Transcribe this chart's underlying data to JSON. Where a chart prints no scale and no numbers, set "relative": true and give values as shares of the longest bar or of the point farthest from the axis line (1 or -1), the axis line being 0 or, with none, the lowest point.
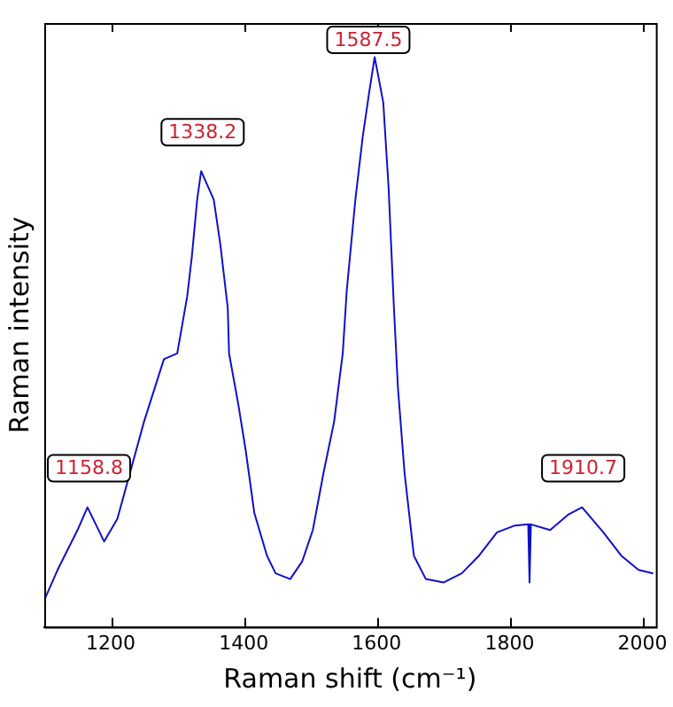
{
  "chart_data": {
    "type": "line",
    "xlabel": "Raman shift (cm⁻¹)",
    "ylabel": "Raman intensity",
    "relative": true,
    "xlim": [
      1100,
      2020
    ],
    "xticks": [
      1200,
      1400,
      1600,
      1800,
      2000
    ],
    "grid": false,
    "legend": false,
    "marker": "none",
    "line_style": "solid",
    "series": [
      {
        "color": "#1010c8",
        "x": [
          1100,
          1120,
          1150,
          1165,
          1190,
          1210,
          1250,
          1280,
          1300,
          1315,
          1322,
          1330,
          1336,
          1355,
          1365,
          1376,
          1378,
          1392,
          1403,
          1416,
          1435,
          1448,
          1470,
          1488,
          1504,
          1520,
          1536,
          1549,
          1555,
          1568,
          1579,
          1589,
          1597,
          1602,
          1610,
          1618,
          1626,
          1632,
          1642,
          1656,
          1674,
          1701,
          1728,
          1754,
          1781,
          1808,
          1828,
          1830,
          1832,
          1861,
          1888,
          1909,
          1941,
          1968,
          1994,
          2016
        ],
        "values": [
          0.047,
          0.1,
          0.17,
          0.21,
          0.15,
          0.19,
          0.36,
          0.47,
          0.48,
          0.58,
          0.65,
          0.75,
          0.8,
          0.75,
          0.67,
          0.56,
          0.48,
          0.39,
          0.31,
          0.2,
          0.125,
          0.094,
          0.084,
          0.115,
          0.17,
          0.27,
          0.36,
          0.48,
          0.59,
          0.75,
          0.86,
          0.94,
          1.0,
          0.97,
          0.92,
          0.77,
          0.56,
          0.42,
          0.27,
          0.125,
          0.084,
          0.078,
          0.094,
          0.125,
          0.166,
          0.178,
          0.18,
          0.078,
          0.18,
          0.17,
          0.197,
          0.21,
          0.166,
          0.125,
          0.1,
          0.094
        ]
      }
    ],
    "annotations": [
      {
        "text": "1158.8",
        "x": 1158.8,
        "y": 0.21
      },
      {
        "text": "1338.2",
        "x": 1338.2,
        "y": 0.8
      },
      {
        "text": "1587.5",
        "x": 1587.5,
        "y": 1.0
      },
      {
        "text": "1910.7",
        "x": 1910.7,
        "y": 0.21
      }
    ]
  }
}
